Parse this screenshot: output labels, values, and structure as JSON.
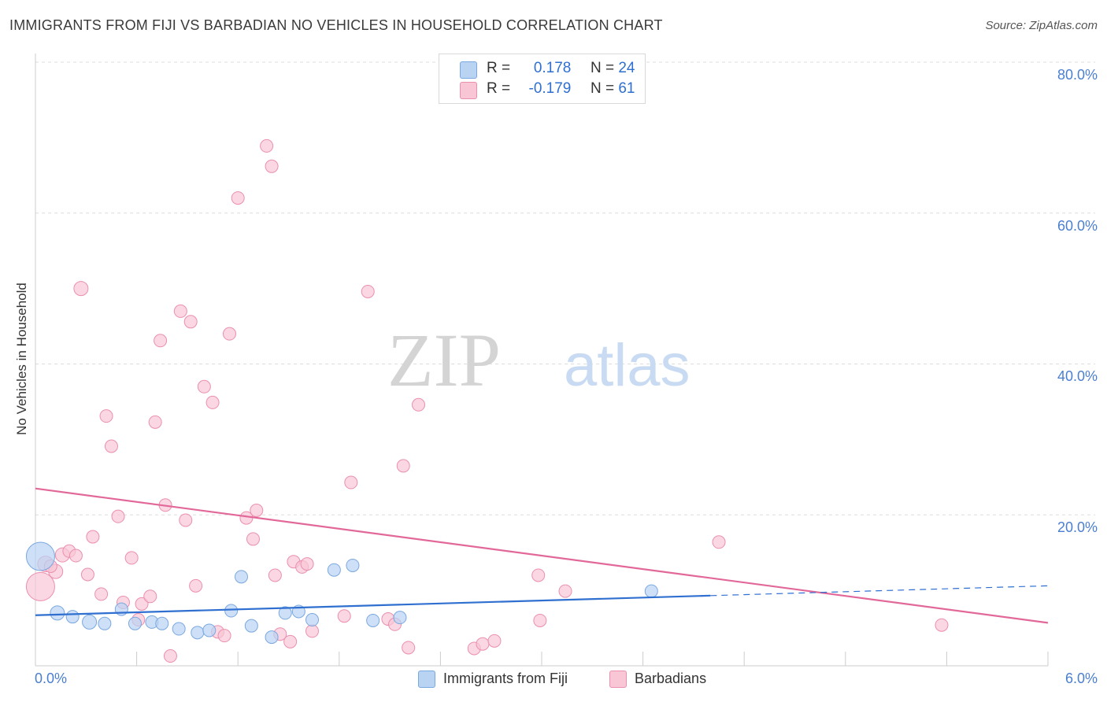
{
  "header": {
    "title": "IMMIGRANTS FROM FIJI VS BARBADIAN NO VEHICLES IN HOUSEHOLD CORRELATION CHART",
    "source": "Source: ZipAtlas.com"
  },
  "watermark": {
    "part1": "ZIP",
    "part2": "atlas"
  },
  "legend_top": {
    "rows": [
      {
        "r_label": "R = ",
        "r_value": "0.178",
        "n_label": "N = ",
        "n_value": "24"
      },
      {
        "r_label": "R = ",
        "r_value": "-0.179",
        "n_label": "N = ",
        "n_value": "61"
      }
    ]
  },
  "legend_bottom": {
    "items": [
      "Immigrants from Fiji",
      "Barbadians"
    ]
  },
  "colors": {
    "fiji_fill": "#b9d3f3",
    "fiji_stroke": "#7aa8e0",
    "fiji_line": "#2f6fd0",
    "barb_fill": "#f8c6d5",
    "barb_stroke": "#eb8fae",
    "barb_line": "#e2689a",
    "tick_text": "#4a7fd0",
    "grid": "#dddddd"
  },
  "chart_data": {
    "type": "scatter",
    "title": "IMMIGRANTS FROM FIJI VS BARBADIAN NO VEHICLES IN HOUSEHOLD CORRELATION CHART",
    "xlabel": "",
    "ylabel": "No Vehicles in Household",
    "xlim": [
      0,
      6
    ],
    "ylim": [
      0,
      80
    ],
    "x_tick_labels": [
      "0.0%",
      "6.0%"
    ],
    "y_tick_labels": [
      "20.0%",
      "40.0%",
      "60.0%",
      "80.0%"
    ],
    "y_ticks": [
      20,
      40,
      60,
      80
    ],
    "grid": true,
    "legend": "top-center",
    "series": [
      {
        "name": "Immigrants from Fiji",
        "r": 0.178,
        "n": 24,
        "trend": {
          "x0": 0,
          "y0": 6.7,
          "x1": 4.0,
          "y1": 9.3,
          "dash_to_x": 6.0,
          "dash_to_y": 10.6
        },
        "points": [
          {
            "x": 0.03,
            "y": 14.5,
            "s": 18
          },
          {
            "x": 0.13,
            "y": 7.0,
            "s": 9
          },
          {
            "x": 0.22,
            "y": 6.5,
            "s": 8
          },
          {
            "x": 0.32,
            "y": 5.8,
            "s": 9
          },
          {
            "x": 0.41,
            "y": 5.6,
            "s": 8
          },
          {
            "x": 0.51,
            "y": 7.5,
            "s": 8
          },
          {
            "x": 0.59,
            "y": 5.6,
            "s": 8
          },
          {
            "x": 0.69,
            "y": 5.8,
            "s": 8
          },
          {
            "x": 0.75,
            "y": 5.6,
            "s": 8
          },
          {
            "x": 0.85,
            "y": 4.9,
            "s": 8
          },
          {
            "x": 0.96,
            "y": 4.4,
            "s": 8
          },
          {
            "x": 1.03,
            "y": 4.7,
            "s": 8
          },
          {
            "x": 1.16,
            "y": 7.3,
            "s": 8
          },
          {
            "x": 1.22,
            "y": 11.8,
            "s": 8
          },
          {
            "x": 1.28,
            "y": 5.3,
            "s": 8
          },
          {
            "x": 1.4,
            "y": 3.8,
            "s": 8
          },
          {
            "x": 1.48,
            "y": 7.0,
            "s": 8
          },
          {
            "x": 1.56,
            "y": 7.2,
            "s": 8
          },
          {
            "x": 1.64,
            "y": 6.1,
            "s": 8
          },
          {
            "x": 1.77,
            "y": 12.7,
            "s": 8
          },
          {
            "x": 1.88,
            "y": 13.3,
            "s": 8
          },
          {
            "x": 2.0,
            "y": 6.0,
            "s": 8
          },
          {
            "x": 2.16,
            "y": 6.4,
            "s": 8
          },
          {
            "x": 3.65,
            "y": 9.9,
            "s": 8
          }
        ]
      },
      {
        "name": "Barbadians",
        "r": -0.179,
        "n": 61,
        "trend": {
          "x0": 0,
          "y0": 23.5,
          "x1": 6.0,
          "y1": 5.7
        },
        "points": [
          {
            "x": 0.03,
            "y": 10.5,
            "s": 18
          },
          {
            "x": 0.06,
            "y": 13.5,
            "s": 10
          },
          {
            "x": 0.12,
            "y": 12.5,
            "s": 9
          },
          {
            "x": 0.16,
            "y": 14.7,
            "s": 9
          },
          {
            "x": 0.2,
            "y": 15.2,
            "s": 8
          },
          {
            "x": 0.24,
            "y": 14.6,
            "s": 8
          },
          {
            "x": 0.27,
            "y": 50.0,
            "s": 9
          },
          {
            "x": 0.31,
            "y": 12.1,
            "s": 8
          },
          {
            "x": 0.34,
            "y": 17.1,
            "s": 8
          },
          {
            "x": 0.39,
            "y": 9.5,
            "s": 8
          },
          {
            "x": 0.42,
            "y": 33.1,
            "s": 8
          },
          {
            "x": 0.45,
            "y": 29.1,
            "s": 8
          },
          {
            "x": 0.49,
            "y": 19.8,
            "s": 8
          },
          {
            "x": 0.52,
            "y": 8.4,
            "s": 8
          },
          {
            "x": 0.57,
            "y": 14.3,
            "s": 8
          },
          {
            "x": 0.61,
            "y": 6.1,
            "s": 8
          },
          {
            "x": 0.63,
            "y": 8.2,
            "s": 8
          },
          {
            "x": 0.68,
            "y": 9.2,
            "s": 8
          },
          {
            "x": 0.71,
            "y": 32.3,
            "s": 8
          },
          {
            "x": 0.74,
            "y": 43.1,
            "s": 8
          },
          {
            "x": 0.77,
            "y": 21.3,
            "s": 8
          },
          {
            "x": 0.8,
            "y": 1.3,
            "s": 8
          },
          {
            "x": 0.86,
            "y": 47.0,
            "s": 8
          },
          {
            "x": 0.89,
            "y": 19.3,
            "s": 8
          },
          {
            "x": 0.92,
            "y": 45.6,
            "s": 8
          },
          {
            "x": 0.95,
            "y": 10.6,
            "s": 8
          },
          {
            "x": 1.0,
            "y": 37.0,
            "s": 8
          },
          {
            "x": 1.05,
            "y": 34.9,
            "s": 8
          },
          {
            "x": 1.08,
            "y": 4.5,
            "s": 8
          },
          {
            "x": 1.12,
            "y": 4.0,
            "s": 8
          },
          {
            "x": 1.15,
            "y": 44.0,
            "s": 8
          },
          {
            "x": 1.2,
            "y": 62.0,
            "s": 8
          },
          {
            "x": 1.25,
            "y": 19.6,
            "s": 8
          },
          {
            "x": 1.29,
            "y": 16.8,
            "s": 8
          },
          {
            "x": 1.31,
            "y": 20.6,
            "s": 8
          },
          {
            "x": 1.37,
            "y": 68.9,
            "s": 8
          },
          {
            "x": 1.4,
            "y": 66.2,
            "s": 8
          },
          {
            "x": 1.42,
            "y": 12.0,
            "s": 8
          },
          {
            "x": 1.45,
            "y": 4.2,
            "s": 8
          },
          {
            "x": 1.51,
            "y": 3.2,
            "s": 8
          },
          {
            "x": 1.53,
            "y": 13.8,
            "s": 8
          },
          {
            "x": 1.58,
            "y": 13.1,
            "s": 8
          },
          {
            "x": 1.61,
            "y": 13.5,
            "s": 8
          },
          {
            "x": 1.64,
            "y": 4.6,
            "s": 8
          },
          {
            "x": 1.83,
            "y": 6.6,
            "s": 8
          },
          {
            "x": 1.87,
            "y": 24.3,
            "s": 8
          },
          {
            "x": 1.97,
            "y": 49.6,
            "s": 8
          },
          {
            "x": 2.09,
            "y": 6.2,
            "s": 8
          },
          {
            "x": 2.13,
            "y": 5.5,
            "s": 8
          },
          {
            "x": 2.18,
            "y": 26.5,
            "s": 8
          },
          {
            "x": 2.21,
            "y": 2.4,
            "s": 8
          },
          {
            "x": 2.27,
            "y": 34.6,
            "s": 8
          },
          {
            "x": 2.6,
            "y": 2.3,
            "s": 8
          },
          {
            "x": 2.65,
            "y": 2.9,
            "s": 8
          },
          {
            "x": 2.72,
            "y": 3.3,
            "s": 8
          },
          {
            "x": 2.98,
            "y": 12.0,
            "s": 8
          },
          {
            "x": 2.99,
            "y": 6.0,
            "s": 8
          },
          {
            "x": 3.14,
            "y": 9.9,
            "s": 8
          },
          {
            "x": 4.05,
            "y": 16.4,
            "s": 8
          },
          {
            "x": 5.37,
            "y": 5.4,
            "s": 8
          },
          {
            "x": 0.09,
            "y": 13.2,
            "s": 8
          }
        ]
      }
    ]
  }
}
